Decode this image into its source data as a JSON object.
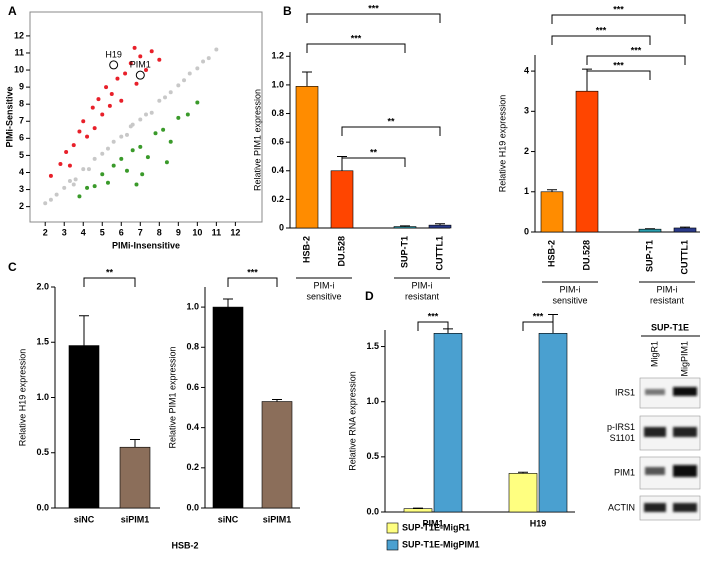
{
  "panel_labels": [
    "A",
    "B",
    "C",
    "D"
  ],
  "chart_data": [
    {
      "type": "scatter",
      "xlabel": "PIMi-Insensitive",
      "ylabel": "PIMi-Sensitive",
      "xlim": [
        1.2,
        13.4
      ],
      "ylim": [
        1.1,
        13.4
      ],
      "xticks": [
        2,
        3,
        4,
        5,
        6,
        7,
        8,
        9,
        10,
        11,
        12
      ],
      "yticks": [
        2,
        3,
        4,
        5,
        6,
        7,
        8,
        9,
        10,
        11,
        12
      ],
      "series": [
        {
          "color": "#c8c8c8",
          "x": [
            2,
            2.3,
            2.6,
            3,
            3.3,
            3.6,
            4,
            4.3,
            4.6,
            5,
            5.3,
            5.6,
            6,
            6.3,
            6.6,
            7,
            7.3,
            7.6,
            8,
            8.3,
            8.6,
            9,
            9.3,
            9.6,
            10,
            10.3,
            10.6,
            11,
            3.5,
            6.5
          ],
          "values": [
            2.2,
            2.4,
            2.7,
            3.1,
            3.5,
            3.6,
            4.2,
            4.2,
            4.8,
            5.1,
            5.4,
            5.8,
            6.1,
            6.2,
            6.8,
            7.1,
            7.4,
            7.5,
            8.2,
            8.4,
            8.7,
            9.1,
            9.4,
            9.8,
            10.1,
            10.5,
            10.7,
            11.2,
            3.3,
            6.7
          ]
        },
        {
          "color": "#e8202a",
          "x": [
            2.3,
            2.8,
            3.1,
            3.5,
            3.8,
            4,
            4.2,
            4.5,
            4.8,
            5,
            5.2,
            5.5,
            5.8,
            6,
            6.2,
            6.5,
            6.8,
            7,
            7.3,
            7.6,
            8,
            3.3,
            4.6,
            5.4,
            6.7
          ],
          "values": [
            3.8,
            4.5,
            5.2,
            5.6,
            6.4,
            7,
            6.1,
            7.8,
            8.3,
            7.4,
            9,
            8.6,
            9.5,
            8.2,
            9.8,
            10.4,
            9.2,
            10.8,
            10,
            11.1,
            10.6,
            4.4,
            6.6,
            7.9,
            11.3
          ]
        },
        {
          "color": "#3a9a2a",
          "x": [
            3.8,
            4.2,
            4.6,
            5,
            5.3,
            5.6,
            6,
            6.3,
            6.6,
            7,
            7.4,
            7.8,
            8.2,
            8.6,
            9,
            9.5,
            10,
            7.1,
            8.4,
            6.8
          ],
          "values": [
            2.6,
            3.1,
            3.2,
            3.9,
            3.4,
            4.4,
            4.8,
            4.1,
            5.3,
            5.5,
            4.9,
            6.3,
            6.5,
            5.8,
            7.2,
            7.4,
            8.1,
            3.9,
            4.6,
            3.3
          ]
        }
      ],
      "point_labels": [
        {
          "text": "H19",
          "x": 5.6,
          "y": 10.3
        },
        {
          "text": "PIM1",
          "x": 7,
          "y": 9.7
        }
      ]
    },
    {
      "type": "bar",
      "ylabel": "Relative PIM1 expression",
      "categories": [
        "HSB-2",
        "DU.528",
        "SUP-T1",
        "CUTTL1"
      ],
      "values": [
        0.99,
        0.4,
        0.01,
        0.02
      ],
      "errors": [
        0.1,
        0.1,
        0.005,
        0.01
      ],
      "colors": [
        "#ff8c00",
        "#ff4500",
        "#2aa0b0",
        "#2a3a8a"
      ],
      "ylim": [
        0,
        1.23
      ],
      "yticks": [
        0,
        0.2,
        0.4,
        0.6,
        0.8,
        {
          "value": 1,
          "label": "1.0"
        },
        1.2
      ],
      "group_labels": [
        [
          "PIM-i",
          "sensitive"
        ],
        [
          "PIM-i",
          "resistant"
        ]
      ],
      "significance": [
        "***",
        "***",
        "**",
        "**"
      ]
    },
    {
      "type": "bar",
      "ylabel": "Relative H19 expression",
      "categories": [
        "HSB-2",
        "DU.528",
        "SUP-T1",
        "CUTTL1"
      ],
      "values": [
        1.0,
        3.5,
        0.07,
        0.1
      ],
      "errors": [
        0.05,
        0.55,
        0.01,
        0.02
      ],
      "colors": [
        "#ff8c00",
        "#ff4500",
        "#2aa0b0",
        "#2a3a8a"
      ],
      "ylim": [
        0,
        4.4
      ],
      "yticks": [
        0,
        1,
        2,
        3,
        4
      ],
      "group_labels": [
        [
          "PIM-i",
          "sensitive"
        ],
        [
          "PIM-i",
          "resistant"
        ]
      ],
      "significance": [
        "***",
        "***",
        "***",
        "***"
      ]
    },
    {
      "type": "bar",
      "ylabel": "Relative H19 expression",
      "xlabel": "HSB-2",
      "categories": [
        "siNC",
        "siPIM1"
      ],
      "values": [
        1.47,
        0.55
      ],
      "errors": [
        0.27,
        0.07
      ],
      "colors": [
        "#000000",
        "#8b6e5a"
      ],
      "ylim": [
        0,
        2.0
      ],
      "yticks": [
        {
          "value": 0,
          "label": "0.0"
        },
        0.5,
        {
          "value": 1,
          "label": "1.0"
        },
        1.5,
        {
          "value": 2,
          "label": "2.0"
        }
      ],
      "significance": [
        "**"
      ]
    },
    {
      "type": "bar",
      "ylabel": "Relative PIM1 expression",
      "categories": [
        "siNC",
        "siPIM1"
      ],
      "values": [
        1.0,
        0.53
      ],
      "errors": [
        0.04,
        0.01
      ],
      "colors": [
        "#000000",
        "#8b6e5a"
      ],
      "ylim": [
        0,
        1.1
      ],
      "yticks": [
        {
          "value": 0,
          "label": "0.0"
        },
        0.2,
        0.4,
        0.6,
        0.8,
        {
          "value": 1,
          "label": "1.0"
        }
      ],
      "significance": [
        "***"
      ]
    },
    {
      "type": "grouped_bar",
      "ylabel": "Relative RNA expression",
      "categories": [
        "PIM1",
        "H19"
      ],
      "series": [
        {
          "name": "SUP-T1E-MigR1",
          "color": "#ffff80",
          "values": [
            0.03,
            0.35
          ],
          "errors": [
            0.005,
            0.01
          ]
        },
        {
          "name": "SUP-T1E-MigPIM1",
          "color": "#4aa0d0",
          "values": [
            1.62,
            1.62
          ],
          "errors": [
            0.04,
            0.17
          ]
        }
      ],
      "ylim": [
        0,
        1.65
      ],
      "yticks": [
        {
          "value": 0,
          "label": "0.0"
        },
        0.5,
        {
          "value": 1,
          "label": "1.0"
        },
        1.5
      ],
      "significance": [
        "***",
        "***"
      ]
    }
  ],
  "blot": {
    "title": "SUP-T1E",
    "lanes": [
      "MigR1",
      "MigPIM1"
    ],
    "rows": [
      [
        "IRS1"
      ],
      [
        "p-IRS1",
        "S1101"
      ],
      [
        "PIM1"
      ],
      [
        "ACTIN"
      ]
    ]
  }
}
